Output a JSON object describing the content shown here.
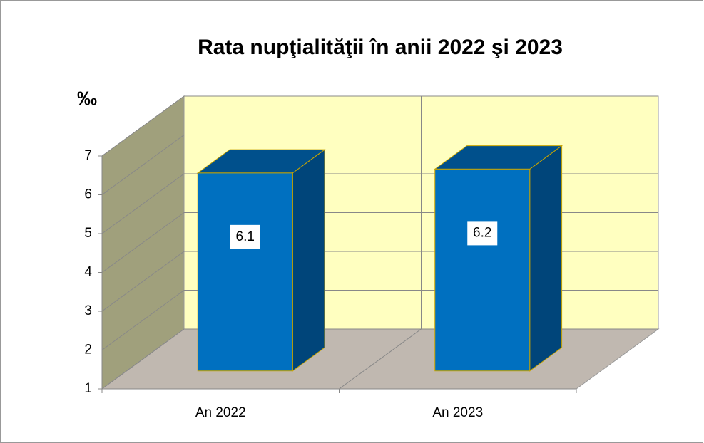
{
  "chart_data": {
    "type": "bar3d",
    "title": "Rata nupţialităţii în anii 2022 şi 2023",
    "y_axis_label": "‰",
    "categories": [
      "An 2022",
      "An 2023"
    ],
    "values": [
      6.1,
      6.2
    ],
    "color": "#0070c0",
    "ylim": [
      1,
      7
    ],
    "yticks": [
      1,
      2,
      3,
      4,
      5,
      6,
      7
    ],
    "grid": true
  }
}
